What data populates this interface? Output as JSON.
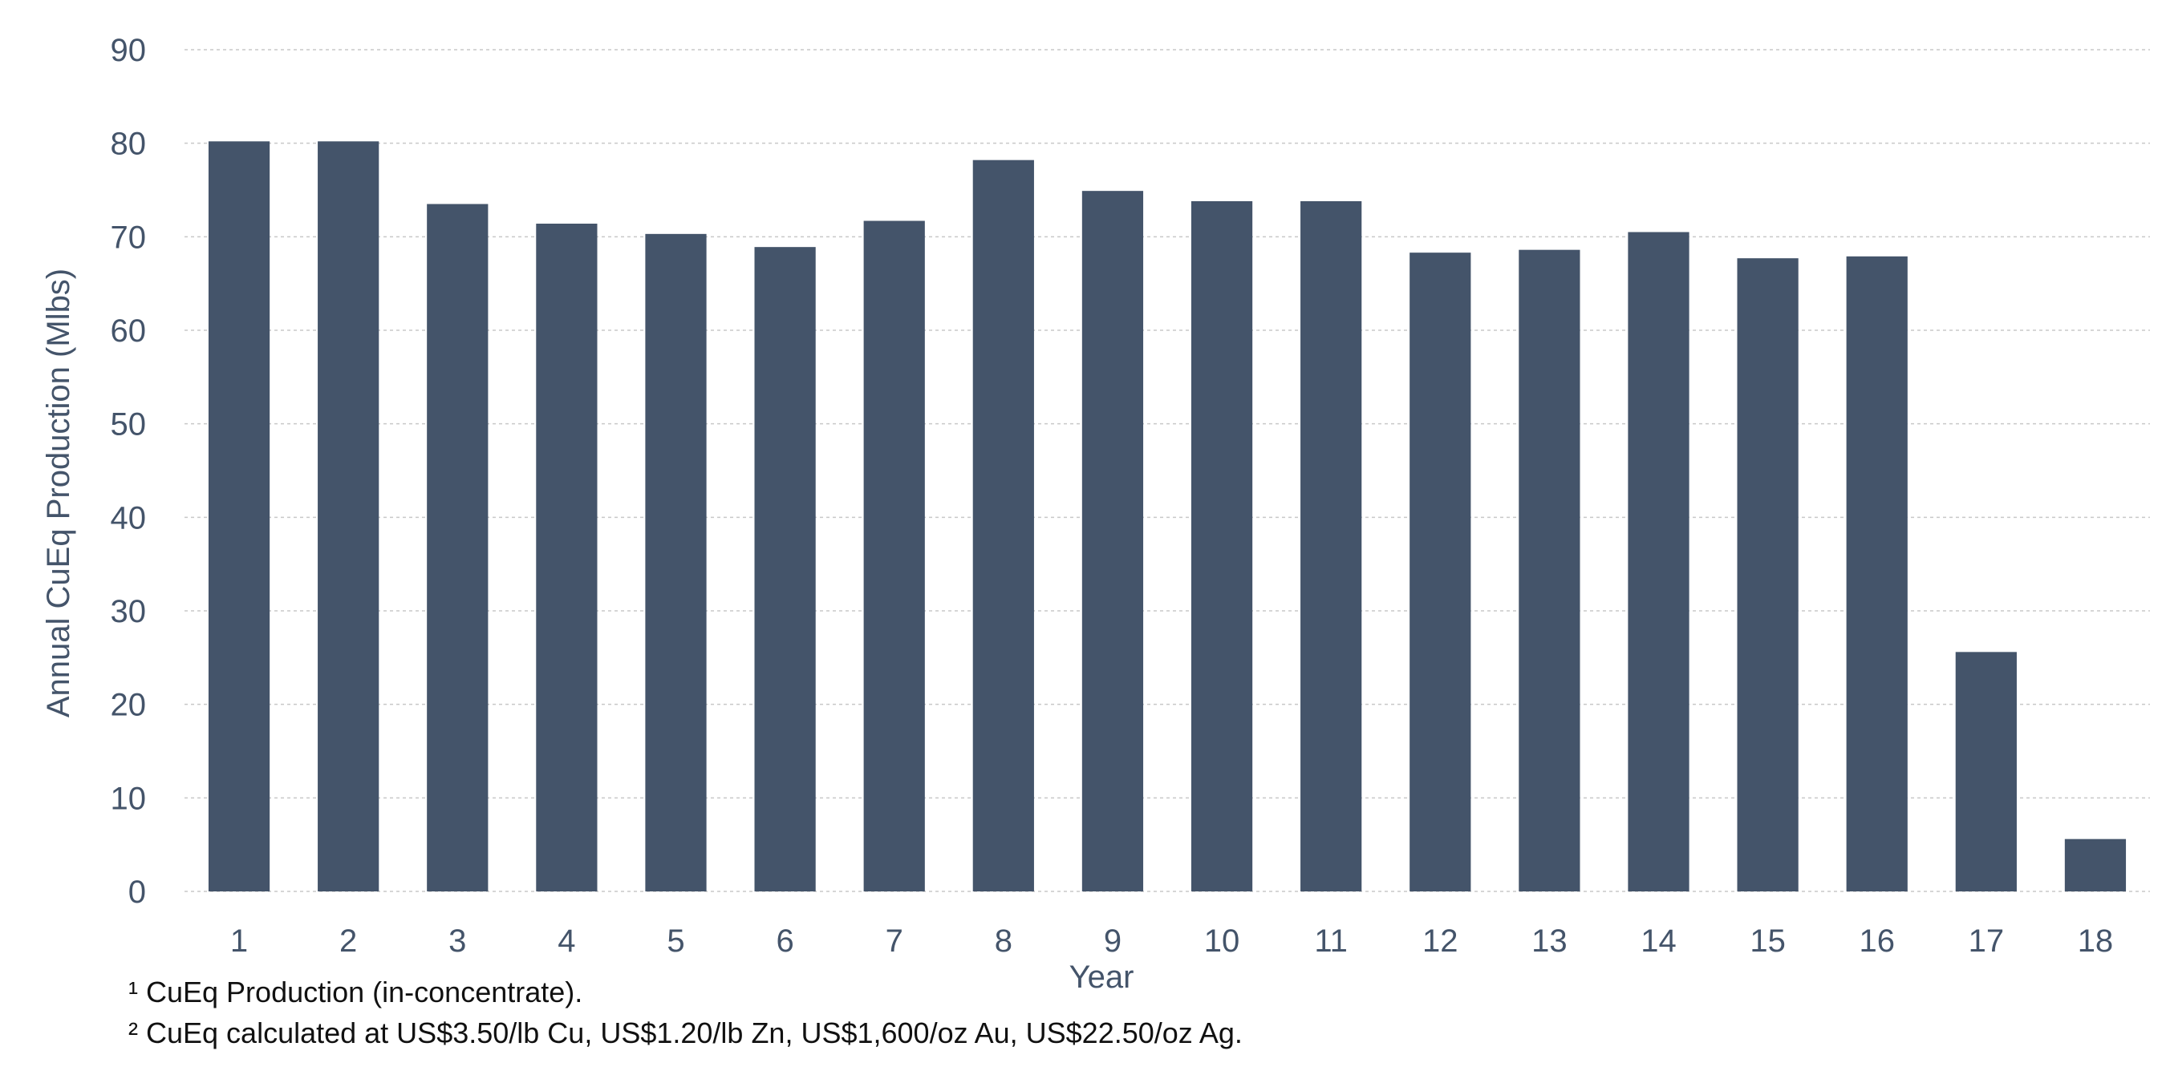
{
  "chart_data": {
    "type": "bar",
    "xlabel": "Year",
    "ylabel": "Annual CuEq Production (Mlbs)",
    "categories": [
      "1",
      "2",
      "3",
      "4",
      "5",
      "6",
      "7",
      "8",
      "9",
      "10",
      "11",
      "12",
      "13",
      "14",
      "15",
      "16",
      "17",
      "18"
    ],
    "values": [
      80.2,
      80.2,
      73.5,
      71.4,
      70.3,
      68.9,
      71.7,
      78.2,
      74.9,
      73.8,
      73.8,
      68.3,
      68.6,
      70.5,
      67.7,
      67.9,
      25.6,
      5.6
    ],
    "ylim": [
      0,
      90
    ],
    "yticks": [
      "0",
      "10",
      "20",
      "30",
      "40",
      "50",
      "60",
      "70",
      "80",
      "90"
    ],
    "grid": true,
    "bar_color": "#44546a",
    "grid_color": "#c8c8c8",
    "text_color": "#44546a"
  },
  "footnotes": [
    "¹ CuEq Production (in-concentrate).",
    "² CuEq calculated at US$3.50/lb Cu, US$1.20/lb Zn, US$1,600/oz Au, US$22.50/oz Ag."
  ]
}
